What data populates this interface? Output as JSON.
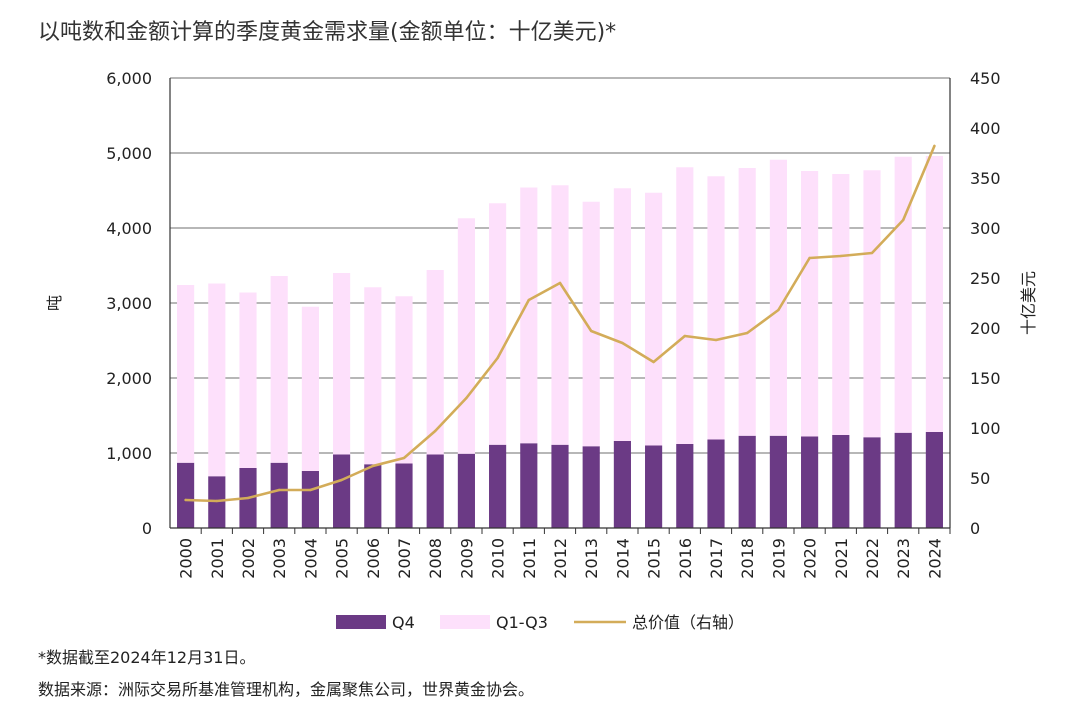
{
  "title": "以吨数和金额计算的季度黄金需求量(金额单位：十亿美元)*",
  "footnote": "*数据截至2024年12月31日。",
  "source": "数据来源：洲际交易所基准管理机构，金属聚焦公司，世界黄金协会。",
  "colors": {
    "q4": "#6b3a85",
    "q1q3": "#fde0fb",
    "line": "#d3ac59",
    "grid": "#8c8c8c",
    "axis": "#333333"
  },
  "chart_data": {
    "type": "bar",
    "stacked": true,
    "categories": [
      "2000",
      "2001",
      "2002",
      "2003",
      "2004",
      "2005",
      "2006",
      "2007",
      "2008",
      "2009",
      "2010",
      "2011",
      "2012",
      "2013",
      "2014",
      "2015",
      "2016",
      "2017",
      "2018",
      "2019",
      "2020",
      "2021",
      "2022",
      "2023",
      "2024"
    ],
    "ylabel": "吨",
    "y2label": "十亿美元",
    "ylim": [
      0,
      6000
    ],
    "y2lim": [
      0,
      450
    ],
    "yticks": [
      0,
      1000,
      2000,
      3000,
      4000,
      5000,
      6000
    ],
    "ytick_labels": [
      "0",
      "1,000",
      "2,000",
      "3,000",
      "4,000",
      "5,000",
      "6,000"
    ],
    "y2ticks": [
      0,
      50,
      100,
      150,
      200,
      250,
      300,
      350,
      400,
      450
    ],
    "ytick2_labels": [
      "0",
      "50",
      "100",
      "150",
      "200",
      "250",
      "300",
      "350",
      "400",
      "450"
    ],
    "grid": true,
    "legend_position": "bottom",
    "series": [
      {
        "name": "Q4",
        "kind": "bar",
        "axis": "left",
        "values": [
          870,
          690,
          800,
          870,
          760,
          980,
          850,
          860,
          980,
          990,
          1110,
          1130,
          1110,
          1090,
          1160,
          1100,
          1120,
          1180,
          1230,
          1230,
          1220,
          1240,
          1210,
          1270,
          1280
        ]
      },
      {
        "name": "Q1-Q3",
        "kind": "bar",
        "axis": "left",
        "values": [
          2370,
          2570,
          2340,
          2490,
          2190,
          2420,
          2360,
          2230,
          2460,
          3140,
          3220,
          3410,
          3460,
          3260,
          3370,
          3370,
          3690,
          3510,
          3570,
          3680,
          3540,
          3480,
          3560,
          3680,
          3680
        ]
      },
      {
        "name": "总价值（右轴）",
        "kind": "line",
        "axis": "right",
        "values": [
          28,
          27,
          30,
          38,
          38,
          48,
          62,
          70,
          97,
          130,
          170,
          228,
          245,
          197,
          185,
          166,
          192,
          188,
          195,
          218,
          270,
          272,
          275,
          308,
          382
        ]
      }
    ]
  }
}
